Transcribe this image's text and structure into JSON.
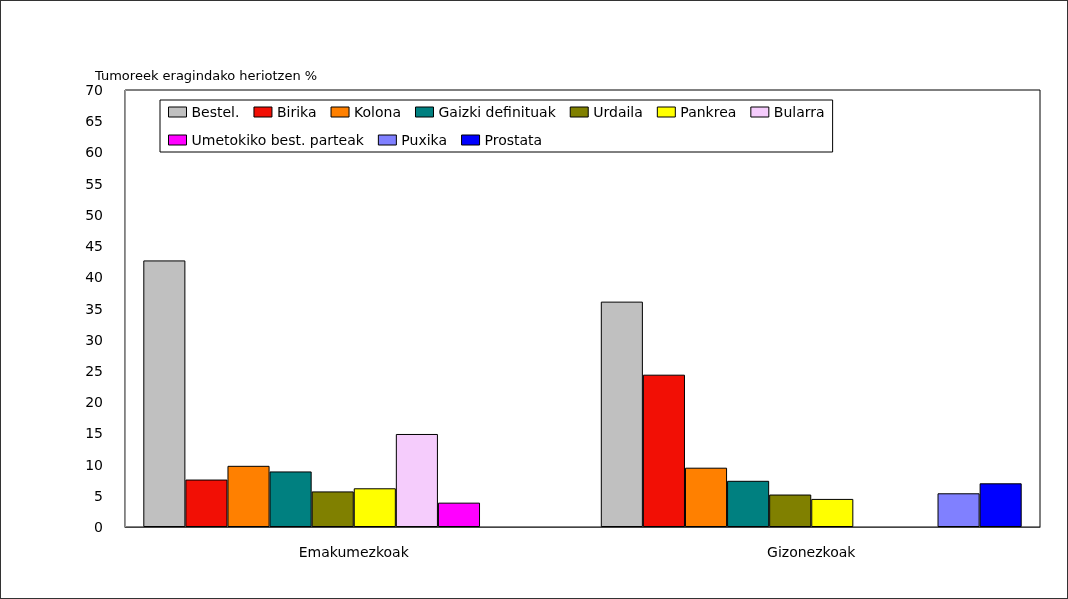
{
  "chart_data": {
    "type": "bar",
    "ylabel": "Tumoreek eragindako heriotzen %",
    "categories": [
      "Emakumezkoak",
      "Gizonezkoak"
    ],
    "series": [
      {
        "name": "Bestel.",
        "color": "#c0c0c0",
        "values": [
          42.7,
          36.1
        ]
      },
      {
        "name": "Birika",
        "color": "#f20f05",
        "values": [
          7.6,
          24.4
        ]
      },
      {
        "name": "Kolona",
        "color": "#ff8000",
        "values": [
          9.8,
          9.5
        ]
      },
      {
        "name": "Gaizki definituak",
        "color": "#008080",
        "values": [
          8.9,
          7.4
        ]
      },
      {
        "name": "Urdaila",
        "color": "#808000",
        "values": [
          5.7,
          5.2
        ]
      },
      {
        "name": "Pankrea",
        "color": "#ffff00",
        "values": [
          6.2,
          4.5
        ]
      },
      {
        "name": "Bularra",
        "color": "#f5ccfc",
        "values": [
          14.9,
          null
        ]
      },
      {
        "name": "Umetokiko best. parteak",
        "color": "#ff00ff",
        "values": [
          3.9,
          null
        ]
      },
      {
        "name": "Puxika",
        "color": "#8080ff",
        "values": [
          null,
          5.4
        ]
      },
      {
        "name": "Prostata",
        "color": "#0000ff",
        "values": [
          null,
          7.0
        ]
      }
    ],
    "ylim": [
      0,
      70
    ],
    "yticks": [
      0,
      5,
      10,
      15,
      20,
      25,
      30,
      35,
      40,
      45,
      50,
      55,
      60,
      65,
      70
    ],
    "grid": false,
    "legend": "top"
  }
}
